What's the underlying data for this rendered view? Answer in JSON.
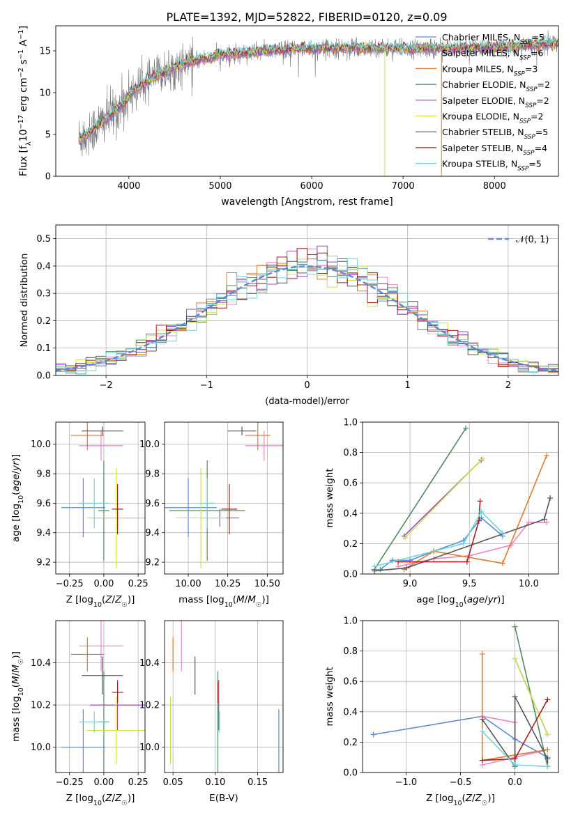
{
  "figure": {
    "title": "PLATE=1392, MJD=52822, FIBERID=0120, z=0.09"
  },
  "colors": {
    "chabrier_miles": "#5b8bd4",
    "salpeter_miles": "#ee82c8",
    "kroupa_miles": "#e0782a",
    "chabrier_elodie": "#4f8a5f",
    "salpeter_elodie": "#9b45c8",
    "kroupa_elodie": "#c8e34a",
    "chabrier_stelib": "#555555",
    "salpeter_stelib": "#a61d1d",
    "kroupa_stelib": "#6fd6d6",
    "data": "#777777",
    "normal": "#5b8bd4"
  },
  "chart_data": [
    {
      "id": "spectrum",
      "type": "line",
      "title": "PLATE=1392, MJD=52822, FIBERID=0120, z=0.09",
      "xlabel": "wavelength [Angstrom, rest frame]",
      "ylabel": "Flux [f_λ 10^-17 erg cm^-2 s^-1 A^-1]",
      "xlim": [
        3200,
        8700
      ],
      "ylim": [
        0,
        18
      ],
      "xticks": [
        4000,
        5000,
        6000,
        7000,
        8000
      ],
      "yticks": [
        0,
        5,
        10,
        15
      ],
      "grid": false,
      "legend_position": "lower-right",
      "continuum": {
        "x": [
          3450,
          3600,
          3800,
          3950,
          4050,
          4300,
          4600,
          5000,
          5500,
          6000,
          6500,
          7000,
          7500,
          8000,
          8500,
          8700
        ],
        "y": [
          4.5,
          5.5,
          7.3,
          8.8,
          10.3,
          12.0,
          13.5,
          14.5,
          15.0,
          15.3,
          15.4,
          15.3,
          15.3,
          15.4,
          15.8,
          16.0
        ]
      },
      "legend": [
        {
          "key": "chabrier_miles",
          "label": "Chabrier MILES, N",
          "sub": "SSP",
          "suffix": "=5"
        },
        {
          "key": "salpeter_miles",
          "label": "Salpeter MILES, N",
          "sub": "SSP",
          "suffix": "=6"
        },
        {
          "key": "kroupa_miles",
          "label": "Kroupa MILES, N",
          "sub": "SSP",
          "suffix": "=3"
        },
        {
          "key": "chabrier_elodie",
          "label": "Chabrier ELODIE, N",
          "sub": "SSP",
          "suffix": "=2"
        },
        {
          "key": "salpeter_elodie",
          "label": "Salpeter ELODIE, N",
          "sub": "SSP",
          "suffix": "=2"
        },
        {
          "key": "kroupa_elodie",
          "label": "Kroupa ELODIE, N",
          "sub": "SSP",
          "suffix": "=2"
        },
        {
          "key": "chabrier_stelib",
          "label": "Chabrier STELIB, N",
          "sub": "SSP",
          "suffix": "=5"
        },
        {
          "key": "salpeter_stelib",
          "label": "Salpeter STELIB, N",
          "sub": "SSP",
          "suffix": "=4"
        },
        {
          "key": "kroupa_stelib",
          "label": "Kroupa STELIB, N",
          "sub": "SSP",
          "suffix": "=5"
        }
      ]
    },
    {
      "id": "residuals",
      "type": "line",
      "xlabel": "(data-model)/error",
      "ylabel": "Normed distribution",
      "xlim": [
        -2.5,
        2.5
      ],
      "ylim": [
        0,
        0.55
      ],
      "xticks": [
        -2,
        -1,
        0,
        1,
        2
      ],
      "yticks": [
        0.0,
        0.1,
        0.2,
        0.3,
        0.4,
        0.5
      ],
      "bin_width": 0.1,
      "grid": true,
      "legend": [
        {
          "label": "N(0,1)",
          "style": "dashed"
        }
      ],
      "legend_position": "top-right"
    },
    {
      "id": "z_age",
      "type": "scatter",
      "xlabel": "Z [log10(Z/Z☉)]",
      "ylabel": "age [log10(age/yr)]",
      "xlim": [
        -0.35,
        0.3
      ],
      "ylim": [
        9.12,
        10.15
      ],
      "xticks": [
        -0.25,
        0.0,
        0.25
      ],
      "yticks": [
        9.2,
        9.4,
        9.6,
        9.8,
        10.0
      ],
      "grid": true
    },
    {
      "id": "mass_age",
      "type": "scatter",
      "xlabel": "mass [log10(M/M☉)]",
      "xlim": [
        9.85,
        10.6
      ],
      "ylim": [
        9.12,
        10.15
      ],
      "xticks": [
        10.0,
        10.25,
        10.5
      ],
      "yticks": [
        9.2,
        9.4,
        9.6,
        9.8,
        10.0
      ],
      "grid": true
    },
    {
      "id": "age_weight",
      "type": "line",
      "xlabel": "age [log10(age/yr)]",
      "ylabel": "mass weight",
      "xlim": [
        8.6,
        10.25
      ],
      "ylim": [
        0,
        1.0
      ],
      "xticks": [
        9.0,
        9.5,
        10.0
      ],
      "yticks": [
        0.0,
        0.2,
        0.4,
        0.6,
        0.8,
        1.0
      ],
      "grid": true,
      "series": [
        {
          "key": "chabrier_miles",
          "x": [
            8.75,
            8.85,
            9.0,
            9.2,
            9.45,
            9.6,
            9.78
          ],
          "y": [
            0.03,
            0.09,
            0.09,
            0.15,
            0.22,
            0.37,
            0.25
          ]
        },
        {
          "key": "salpeter_miles",
          "x": [
            8.9,
            9.2,
            9.5,
            9.85,
            10.0,
            10.15
          ],
          "y": [
            0.05,
            0.1,
            0.12,
            0.19,
            0.34,
            0.34
          ]
        },
        {
          "key": "kroupa_miles",
          "x": [
            8.95,
            9.2,
            9.78,
            10.15
          ],
          "y": [
            0.03,
            0.15,
            0.07,
            0.78
          ]
        },
        {
          "key": "chabrier_elodie",
          "x": [
            8.7,
            9.47
          ],
          "y": [
            0.03,
            0.96
          ]
        },
        {
          "key": "salpeter_elodie",
          "x": [
            8.95,
            9.6
          ],
          "y": [
            0.25,
            0.75
          ]
        },
        {
          "key": "kroupa_elodie",
          "x": [
            8.96,
            9.61
          ],
          "y": [
            0.24,
            0.76
          ]
        },
        {
          "key": "chabrier_stelib",
          "x": [
            8.7,
            8.97,
            10.13,
            10.18
          ],
          "y": [
            0.02,
            0.04,
            0.36,
            0.5
          ]
        },
        {
          "key": "salpeter_stelib",
          "x": [
            8.9,
            9.48,
            9.58,
            9.59
          ],
          "y": [
            0.08,
            0.08,
            0.35,
            0.48
          ]
        },
        {
          "key": "kroupa_stelib",
          "x": [
            8.7,
            9.45,
            9.6,
            9.78
          ],
          "y": [
            0.05,
            0.2,
            0.41,
            0.27
          ]
        }
      ]
    },
    {
      "id": "z_mass",
      "type": "scatter",
      "xlabel": "Z [log10(Z/Z☉)]",
      "ylabel": "mass [log10(M/M☉)]",
      "xlim": [
        -0.35,
        0.3
      ],
      "ylim": [
        9.88,
        10.6
      ],
      "xticks": [
        -0.25,
        0.0,
        0.25
      ],
      "yticks": [
        10.0,
        10.2,
        10.4
      ],
      "grid": true
    },
    {
      "id": "ebv_mass",
      "type": "scatter",
      "xlabel": "E(B-V)",
      "xlim": [
        0.04,
        0.18
      ],
      "ylim": [
        9.88,
        10.6
      ],
      "xticks": [
        0.05,
        0.1,
        0.15
      ],
      "yticks": [
        10.0,
        10.2,
        10.4
      ],
      "grid": true
    },
    {
      "id": "z_weight",
      "type": "line",
      "xlabel": "Z [log10(Z/Z☉)]",
      "ylabel": "mass weight",
      "xlim": [
        -1.4,
        0.4
      ],
      "ylim": [
        0,
        1.0
      ],
      "xticks": [
        -1.0,
        -0.5,
        0.0
      ],
      "yticks": [
        0.0,
        0.2,
        0.4,
        0.6,
        0.8,
        1.0
      ],
      "grid": true,
      "series": [
        {
          "key": "chabrier_miles",
          "x": [
            -1.3,
            -0.3,
            0.0,
            0.3
          ],
          "y": [
            0.25,
            0.37,
            0.22,
            0.1
          ]
        },
        {
          "key": "salpeter_miles",
          "x": [
            -0.3,
            0.0,
            0.0,
            0.3,
            -0.3
          ],
          "y": [
            0.37,
            0.33,
            0.1,
            0.15,
            0.05
          ]
        },
        {
          "key": "kroupa_miles",
          "x": [
            -0.3,
            -0.3,
            0.3
          ],
          "y": [
            0.78,
            0.08,
            0.15
          ]
        },
        {
          "key": "chabrier_elodie",
          "x": [
            0.0,
            0.3
          ],
          "y": [
            0.96,
            0.04
          ]
        },
        {
          "key": "salpeter_elodie",
          "x": [
            0.0,
            0.3
          ],
          "y": [
            0.75,
            0.25
          ]
        },
        {
          "key": "kroupa_elodie",
          "x": [
            0.0,
            0.3
          ],
          "y": [
            0.75,
            0.25
          ]
        },
        {
          "key": "chabrier_stelib",
          "x": [
            -0.3,
            0.0,
            0.0,
            0.3,
            0.3
          ],
          "y": [
            0.35,
            0.04,
            0.5,
            0.09,
            0.04
          ]
        },
        {
          "key": "salpeter_stelib",
          "x": [
            -0.3,
            0.0,
            0.3
          ],
          "y": [
            0.08,
            0.09,
            0.48
          ]
        },
        {
          "key": "kroupa_stelib",
          "x": [
            -0.3,
            0.0,
            0.3
          ],
          "y": [
            0.27,
            0.05,
            0.04
          ]
        }
      ]
    }
  ],
  "crosses": [
    {
      "key": "chabrier_miles",
      "age": 9.57,
      "age_err": 0.2,
      "Z": -0.15,
      "Z_err": 0.16,
      "mass": 10.0,
      "mass_err": 0.18,
      "ebv": 0.175
    },
    {
      "key": "salpeter_miles",
      "age": 9.99,
      "age_err": 0.1,
      "Z": -0.02,
      "Z_err": 0.16,
      "mass": 10.48,
      "mass_err": 0.12,
      "ebv": 0.06
    },
    {
      "key": "kroupa_miles",
      "age": 10.06,
      "age_err": 0.1,
      "Z": -0.12,
      "Z_err": 0.12,
      "mass": 10.44,
      "mass_err": 0.08,
      "ebv": 0.05
    },
    {
      "key": "chabrier_elodie",
      "age": 9.55,
      "age_err": 0.34,
      "Z": 0.0,
      "Z_err": 0.04,
      "mass": 10.12,
      "mass_err": 0.24,
      "ebv": 0.103
    },
    {
      "key": "salpeter_elodie",
      "age": 9.5,
      "age_err": 0.06,
      "Z": 0.1,
      "Z_err": 0.2,
      "mass": 10.2,
      "mass_err": 0.12,
      "ebv": 0.104
    },
    {
      "key": "kroupa_elodie",
      "age": 9.5,
      "age_err": 0.34,
      "Z": 0.09,
      "Z_err": 0.22,
      "mass": 10.08,
      "mass_err": 0.16,
      "ebv": 0.047
    },
    {
      "key": "chabrier_stelib",
      "age": 10.09,
      "age_err": 0.03,
      "Z": -0.01,
      "Z_err": 0.15,
      "mass": 10.34,
      "mass_err": 0.09,
      "ebv": 0.076
    },
    {
      "key": "salpeter_stelib",
      "age": 9.56,
      "age_err": 0.17,
      "Z": 0.1,
      "Z_err": 0.04,
      "mass": 10.26,
      "mass_err": 0.05,
      "ebv": 0.103
    },
    {
      "key": "kroupa_stelib",
      "age": 9.6,
      "age_err": 0.17,
      "Z": -0.07,
      "Z_err": 0.11,
      "mass": 10.12,
      "mass_err": 0.05,
      "ebv": 0.105
    }
  ]
}
